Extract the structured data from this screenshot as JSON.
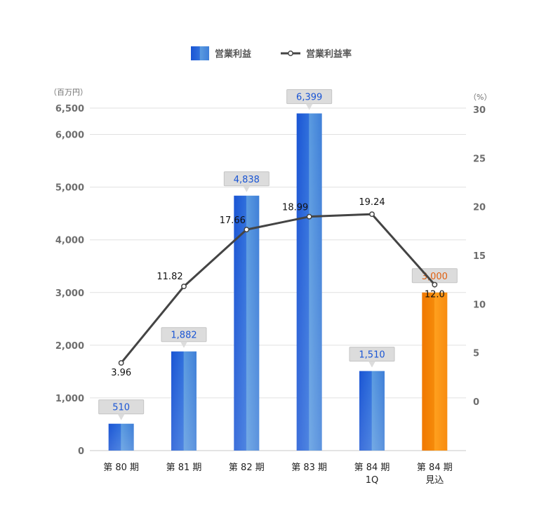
{
  "chart_data": {
    "type": "bar",
    "legend": {
      "position": "top-center",
      "items": [
        {
          "label": "営業利益",
          "kind": "bar"
        },
        {
          "label": "営業利益率",
          "kind": "line"
        }
      ]
    },
    "y_left": {
      "unit": "（百万円）",
      "range": [
        0,
        6500
      ],
      "ticks": [
        "0",
        "1,000",
        "2,000",
        "3,000",
        "4,000",
        "5,000",
        "6,000",
        "6,500"
      ]
    },
    "y_right": {
      "unit": "（%）",
      "range": [
        -5,
        30
      ],
      "ticks": [
        "0",
        "5",
        "10",
        "15",
        "20",
        "25",
        "30"
      ]
    },
    "categories": [
      [
        "第 80 期"
      ],
      [
        "第 81 期"
      ],
      [
        "第 82 期"
      ],
      [
        "第 83 期"
      ],
      [
        "第 84 期",
        "1Q"
      ],
      [
        "第 84 期",
        "見込"
      ]
    ],
    "series": [
      {
        "name": "営業利益",
        "type": "bar",
        "values": [
          510,
          1882,
          4838,
          6399,
          1510,
          3000
        ],
        "labels": [
          "510",
          "1,882",
          "4,838",
          "6,399",
          "1,510",
          "3,000"
        ],
        "highlight_index": 5
      },
      {
        "name": "営業利益率",
        "type": "line",
        "values": [
          3.96,
          11.82,
          17.66,
          18.99,
          19.24,
          12.0
        ],
        "labels": [
          "3.96",
          "11.82",
          "17.66",
          "18.99",
          "19.24",
          "12.0"
        ]
      }
    ],
    "grid": true,
    "colors": {
      "bar_dark": "#1a55d4",
      "bar_light": "#5b9be0",
      "forecast_dark": "#f07800",
      "forecast_light": "#ffa01e",
      "line": "#444444",
      "bar_label_blue": "#1a55d4",
      "bar_label_orange": "#e06010",
      "label_box": "#dcdcdc",
      "grid": "#e0e0e0"
    }
  }
}
